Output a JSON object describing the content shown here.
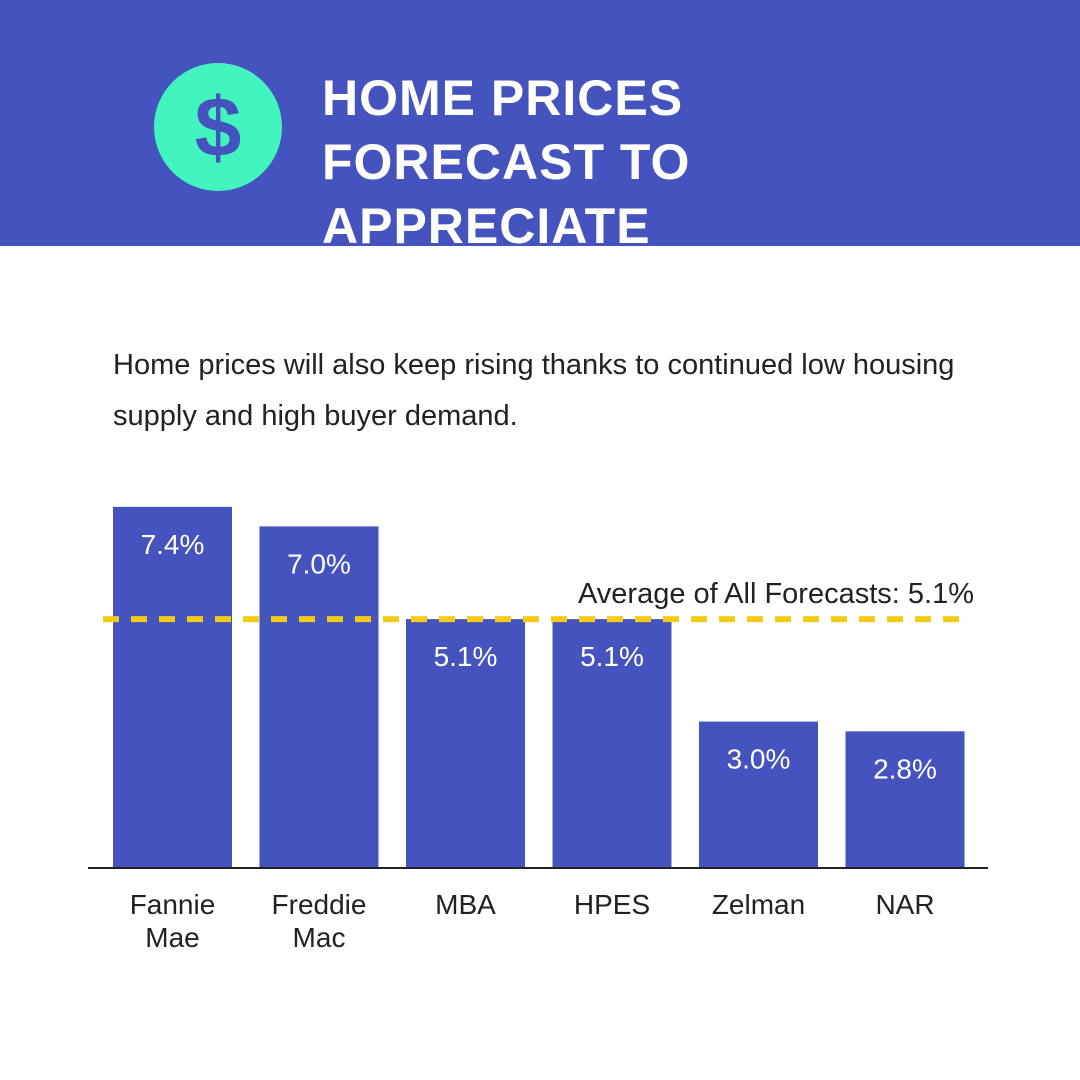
{
  "chart_data": {
    "type": "bar",
    "icon": "$",
    "title": "HOME PRICES FORECAST TO APPRECIATE",
    "subtitle": "Home prices will also keep rising thanks to continued low housing supply and high buyer demand.",
    "categories": [
      "Fannie Mae",
      "Freddie Mac",
      "MBA",
      "HPES",
      "Zelman",
      "NAR"
    ],
    "values": [
      7.4,
      7.0,
      5.1,
      5.1,
      3.0,
      2.8
    ],
    "value_labels": [
      "7.4%",
      "7.0%",
      "5.1%",
      "5.1%",
      "3.0%",
      "2.8%"
    ],
    "color": "#4553be",
    "average": {
      "value": 5.1,
      "label": "Average of All Forecasts: 5.1%",
      "color": "#f5cc15"
    },
    "ylim": [
      0,
      8
    ]
  }
}
